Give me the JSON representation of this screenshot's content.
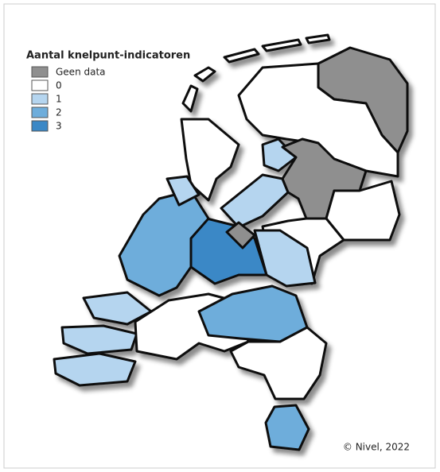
{
  "legend": {
    "title": "Aantal knelpunt-indicatoren",
    "items": [
      {
        "label": "Geen data",
        "color": "#8f8f8f"
      },
      {
        "label": "0",
        "color": "#ffffff"
      },
      {
        "label": "1",
        "color": "#b5d5ef"
      },
      {
        "label": "2",
        "color": "#6eaddb"
      },
      {
        "label": "3",
        "color": "#3b88c6"
      }
    ]
  },
  "credit": "© Nivel, 2022"
}
